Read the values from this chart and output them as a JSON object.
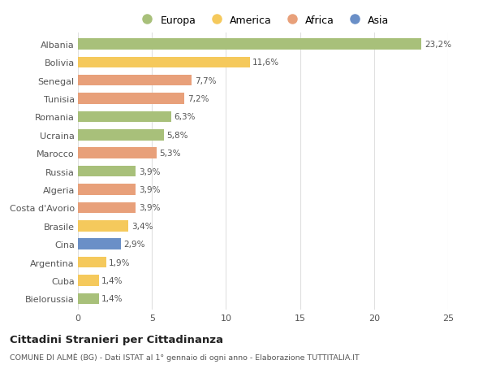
{
  "countries": [
    "Albania",
    "Bolivia",
    "Senegal",
    "Tunisia",
    "Romania",
    "Ucraina",
    "Marocco",
    "Russia",
    "Algeria",
    "Costa d'Avorio",
    "Brasile",
    "Cina",
    "Argentina",
    "Cuba",
    "Bielorussia"
  ],
  "values": [
    23.2,
    11.6,
    7.7,
    7.2,
    6.3,
    5.8,
    5.3,
    3.9,
    3.9,
    3.9,
    3.4,
    2.9,
    1.9,
    1.4,
    1.4
  ],
  "labels": [
    "23,2%",
    "11,6%",
    "7,7%",
    "7,2%",
    "6,3%",
    "5,8%",
    "5,3%",
    "3,9%",
    "3,9%",
    "3,9%",
    "3,4%",
    "2,9%",
    "1,9%",
    "1,4%",
    "1,4%"
  ],
  "colors": [
    "#a8c07a",
    "#f5c95c",
    "#e8a07a",
    "#e8a07a",
    "#a8c07a",
    "#a8c07a",
    "#e8a07a",
    "#a8c07a",
    "#e8a07a",
    "#e8a07a",
    "#f5c95c",
    "#6a8fc7",
    "#f5c95c",
    "#f5c95c",
    "#a8c07a"
  ],
  "regions": [
    "Europa",
    "America",
    "Africa",
    "Asia"
  ],
  "region_colors": [
    "#a8c07a",
    "#f5c95c",
    "#e8a07a",
    "#6a8fc7"
  ],
  "title": "Cittadini Stranieri per Cittadinanza",
  "subtitle": "COMUNE DI ALMÈ (BG) - Dati ISTAT al 1° gennaio di ogni anno - Elaborazione TUTTITALIA.IT",
  "xlim": [
    0,
    25
  ],
  "xticks": [
    0,
    5,
    10,
    15,
    20,
    25
  ],
  "background_color": "#ffffff",
  "grid_color": "#e0e0e0",
  "bar_height": 0.6
}
